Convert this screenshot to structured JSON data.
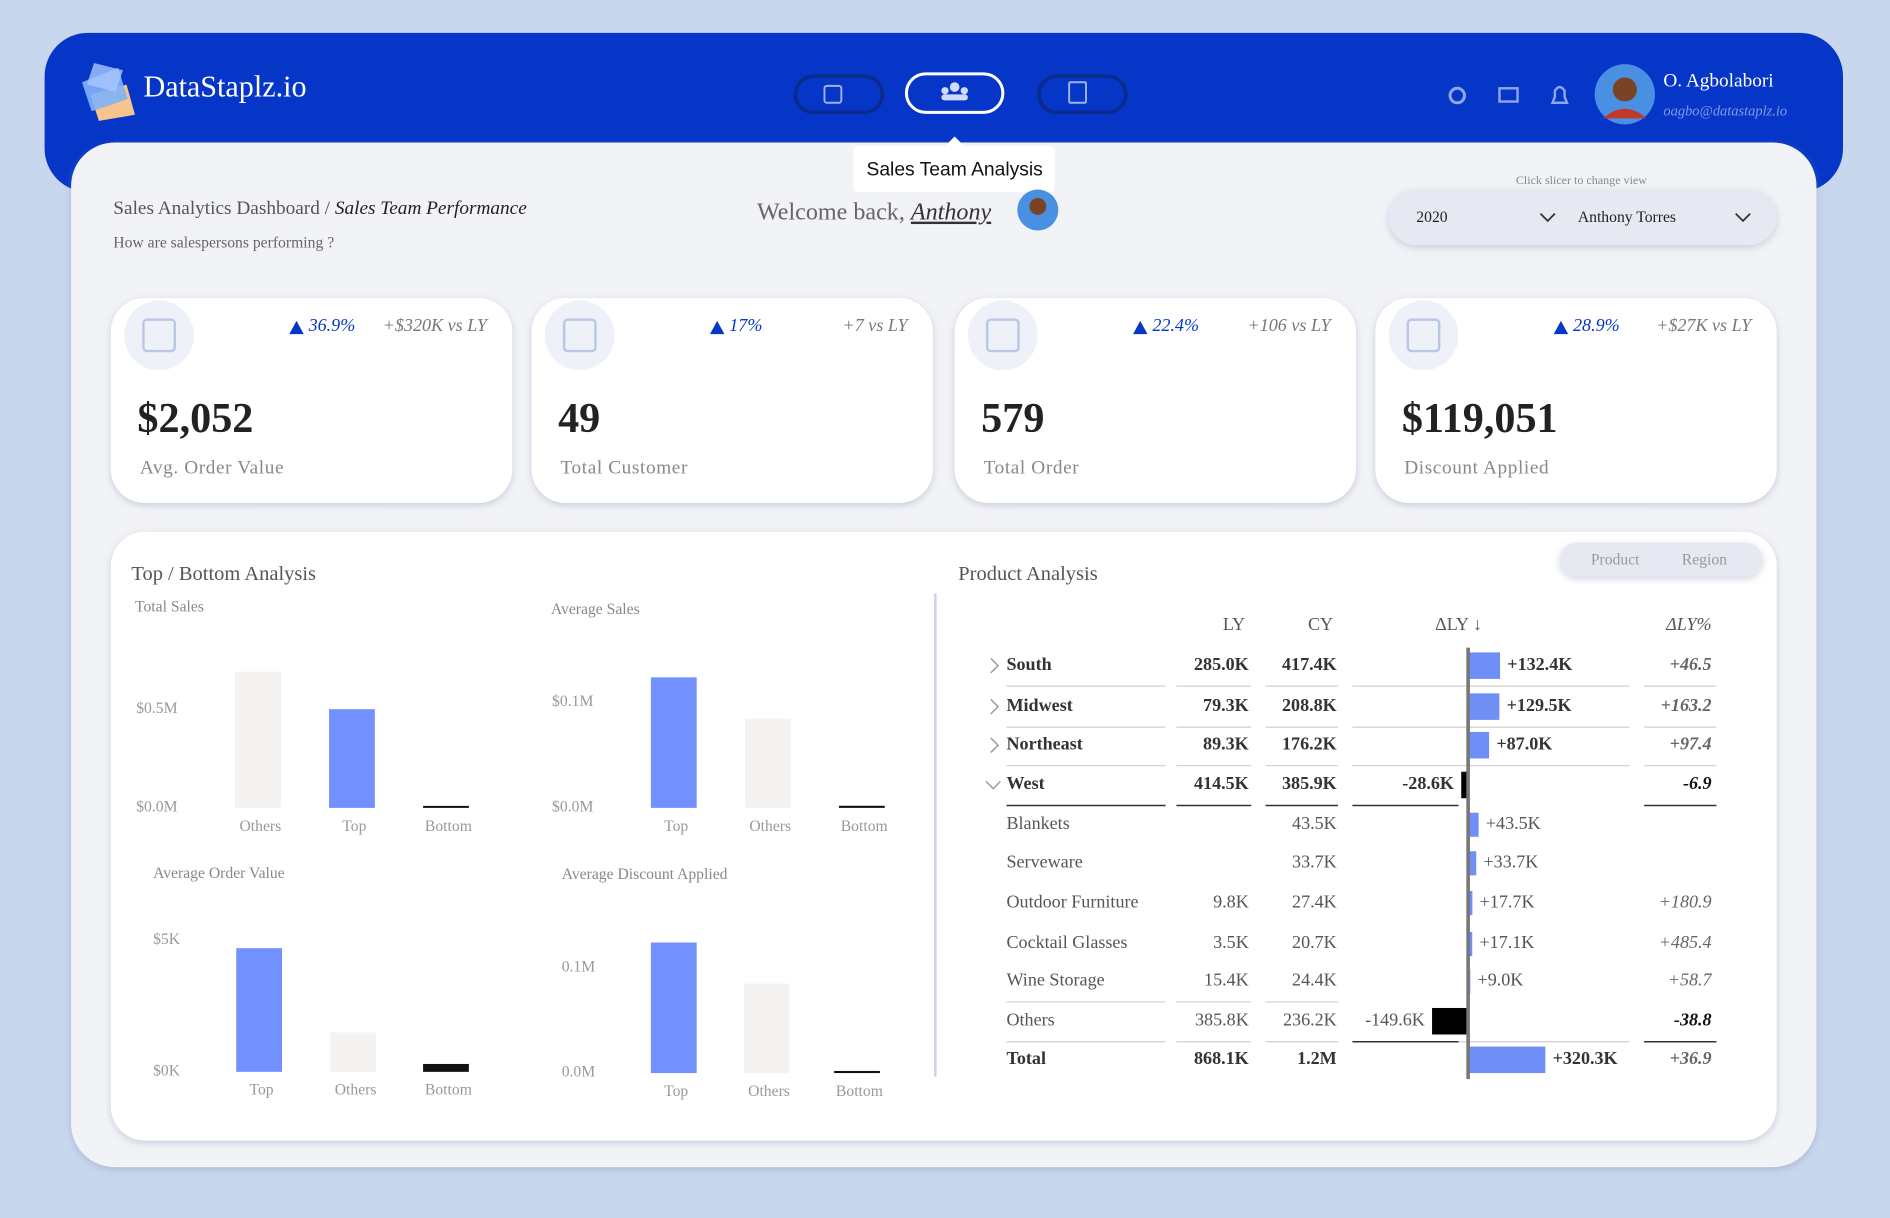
{
  "header": {
    "logo": "DataStaplz.io",
    "user_name": "O. Agbolabori",
    "user_email": "oagbo@datastaplz.io",
    "tooltip": "Sales Team Analysis"
  },
  "page": {
    "breadcrumb": "Sales Analytics Dashboard /",
    "page_title": "Sales Team Performance",
    "subtitle": "How are salespersons performing ?",
    "welcome": "Welcome back,",
    "welcome_name": "Anthony",
    "slicer_hint": "Click slicer to change view",
    "slicer_year": "2020",
    "slicer_person": "Anthony Torres"
  },
  "kpis": [
    {
      "change": "36.9%",
      "vs": "+$320K vs LY",
      "value": "$2,052",
      "label": "Avg. Order Value"
    },
    {
      "change": "17%",
      "vs": "+7 vs LY",
      "value": "49",
      "label": "Total Customer"
    },
    {
      "change": "22.4%",
      "vs": "+106 vs LY",
      "value": "579",
      "label": "Total Order"
    },
    {
      "change": "28.9%",
      "vs": "+$27K vs LY",
      "value": "$119,051",
      "label": "Discount Applied"
    }
  ],
  "top_bottom": {
    "title": "Top / Bottom Analysis",
    "charts": [
      {
        "type": "bar",
        "title": "Total Sales",
        "categories": [
          "Others",
          "Top",
          "Bottom"
        ],
        "values": [
          0.69,
          0.5,
          0.01
        ],
        "colors": [
          "#f4f3f1",
          "#7390ff",
          "#111111"
        ],
        "ylim": [
          0,
          0.8
        ],
        "yticks": [
          {
            "value": 0,
            "label": "$0.0M"
          },
          {
            "value": 0.5,
            "label": "$0.5M"
          }
        ]
      },
      {
        "type": "bar",
        "title": "Average Sales",
        "categories": [
          "Top",
          "Others",
          "Bottom"
        ],
        "values": [
          0.124,
          0.085,
          0.002
        ],
        "colors": [
          "#7390ff",
          "#f4f3f1",
          "#111111"
        ],
        "ylim": [
          0,
          0.15
        ],
        "yticks": [
          {
            "value": 0,
            "label": "$0.0M"
          },
          {
            "value": 0.1,
            "label": "$0.1M"
          }
        ]
      },
      {
        "type": "bar",
        "title": "Average Order Value",
        "categories": [
          "Top",
          "Others",
          "Bottom"
        ],
        "values": [
          4.7,
          1.5,
          0.3
        ],
        "colors": [
          "#7390ff",
          "#f4f3f1",
          "#111111"
        ],
        "ylim": [
          0,
          6
        ],
        "yticks": [
          {
            "value": 0,
            "label": "$0K"
          },
          {
            "value": 5,
            "label": "$5K"
          }
        ]
      },
      {
        "type": "bar",
        "title": "Average Discount Applied",
        "categories": [
          "Top",
          "Others",
          "Bottom"
        ],
        "values": [
          0.124,
          0.085,
          0.002
        ],
        "colors": [
          "#7390ff",
          "#f4f3f1",
          "#111111"
        ],
        "ylim": [
          0,
          0.15
        ],
        "yticks": [
          {
            "value": 0,
            "label": "0.0M"
          },
          {
            "value": 0.1,
            "label": "0.1M"
          }
        ]
      }
    ]
  },
  "product_analysis": {
    "title": "Product Analysis",
    "toggle": [
      "Product",
      "Region"
    ],
    "columns": [
      "LY",
      "CY",
      "ΔLY ↓",
      "ΔLY%"
    ],
    "rows": [
      [
        "South",
        "285.0K",
        "417.4K",
        "+46.5"
      ],
      [
        "Midwest",
        "79.3K",
        "208.8K",
        "+163.2"
      ],
      [
        "Northeast",
        "89.3K",
        "176.2K",
        "+97.4"
      ],
      [
        "West",
        "414.5K",
        "385.9K",
        "-6.9"
      ],
      [
        "Blankets",
        null,
        "43.5K",
        null
      ],
      [
        "Serveware",
        null,
        "33.7K",
        null
      ],
      [
        "Outdoor Furniture",
        "9.8K",
        "27.4K",
        "+180.9"
      ],
      [
        "Cocktail Glasses",
        "3.5K",
        "20.7K",
        "+485.4"
      ],
      [
        "Wine Storage",
        "15.4K",
        "24.4K",
        "+58.7"
      ],
      [
        "Others",
        "385.8K",
        "236.2K",
        "-38.8"
      ],
      [
        "Total",
        "868.1K",
        "1.2M",
        "+36.9"
      ]
    ],
    "delta": {
      "values": [
        132.4,
        129.5,
        87.0,
        -28.6,
        43.5,
        33.7,
        17.7,
        17.1,
        9.0,
        -149.6,
        320.3
      ],
      "value_labels": [
        "+132.4K",
        "+129.5K",
        "+87.0K",
        "-28.6K",
        "+43.5K",
        "+33.7K",
        "+17.7K",
        "+17.1K",
        "+9.0K",
        "-149.6K",
        "+320.3K"
      ],
      "xlim": [
        -480,
        660
      ],
      "positive_color": "#6f8ff7",
      "negative_color": "#000000"
    }
  }
}
